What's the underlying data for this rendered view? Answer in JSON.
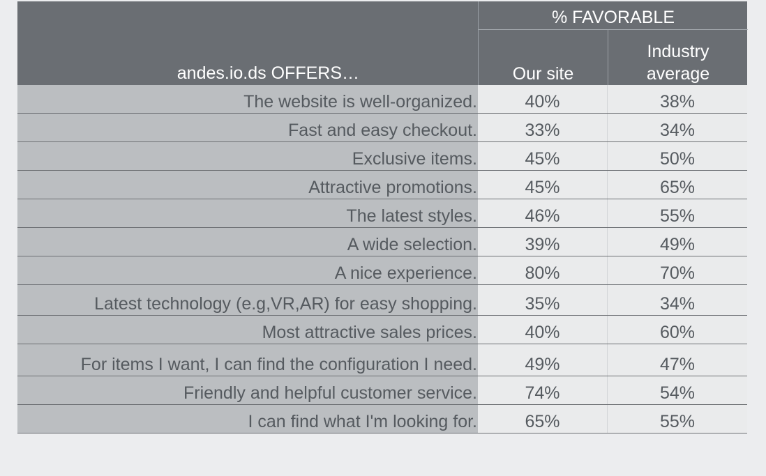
{
  "header": {
    "favorable_title": "% FAVORABLE",
    "offers_label": "andes.io.ds OFFERS…",
    "col_ours": "Our site",
    "col_industry_line1": "Industry",
    "col_industry_line2": "average"
  },
  "chart_data": {
    "type": "table",
    "columns": [
      "andes.io.ds OFFERS…",
      "Our site",
      "Industry average"
    ],
    "rows": [
      {
        "label": "The website is well-organized.",
        "ours": "40%",
        "industry": "38%"
      },
      {
        "label": "Fast and easy checkout.",
        "ours": "33%",
        "industry": "34%"
      },
      {
        "label": "Exclusive items.",
        "ours": "45%",
        "industry": "50%"
      },
      {
        "label": "Attractive promotions.",
        "ours": "45%",
        "industry": "65%"
      },
      {
        "label": "The latest styles.",
        "ours": "46%",
        "industry": "55%"
      },
      {
        "label": "A wide selection.",
        "ours": "39%",
        "industry": "49%"
      },
      {
        "label": "A nice experience.",
        "ours": "80%",
        "industry": "70%"
      },
      {
        "label": "Latest technology (e.g,VR,AR) for easy shopping.",
        "ours": "35%",
        "industry": "34%"
      },
      {
        "label": "Most attractive sales prices.",
        "ours": "40%",
        "industry": "60%"
      },
      {
        "label": "For items I want, I can find the configuration I need.",
        "ours": "49%",
        "industry": "47%"
      },
      {
        "label": "Friendly and helpful customer service.",
        "ours": "74%",
        "industry": "54%"
      },
      {
        "label": "I can find what I'm looking for.",
        "ours": "65%",
        "industry": "55%"
      }
    ]
  }
}
